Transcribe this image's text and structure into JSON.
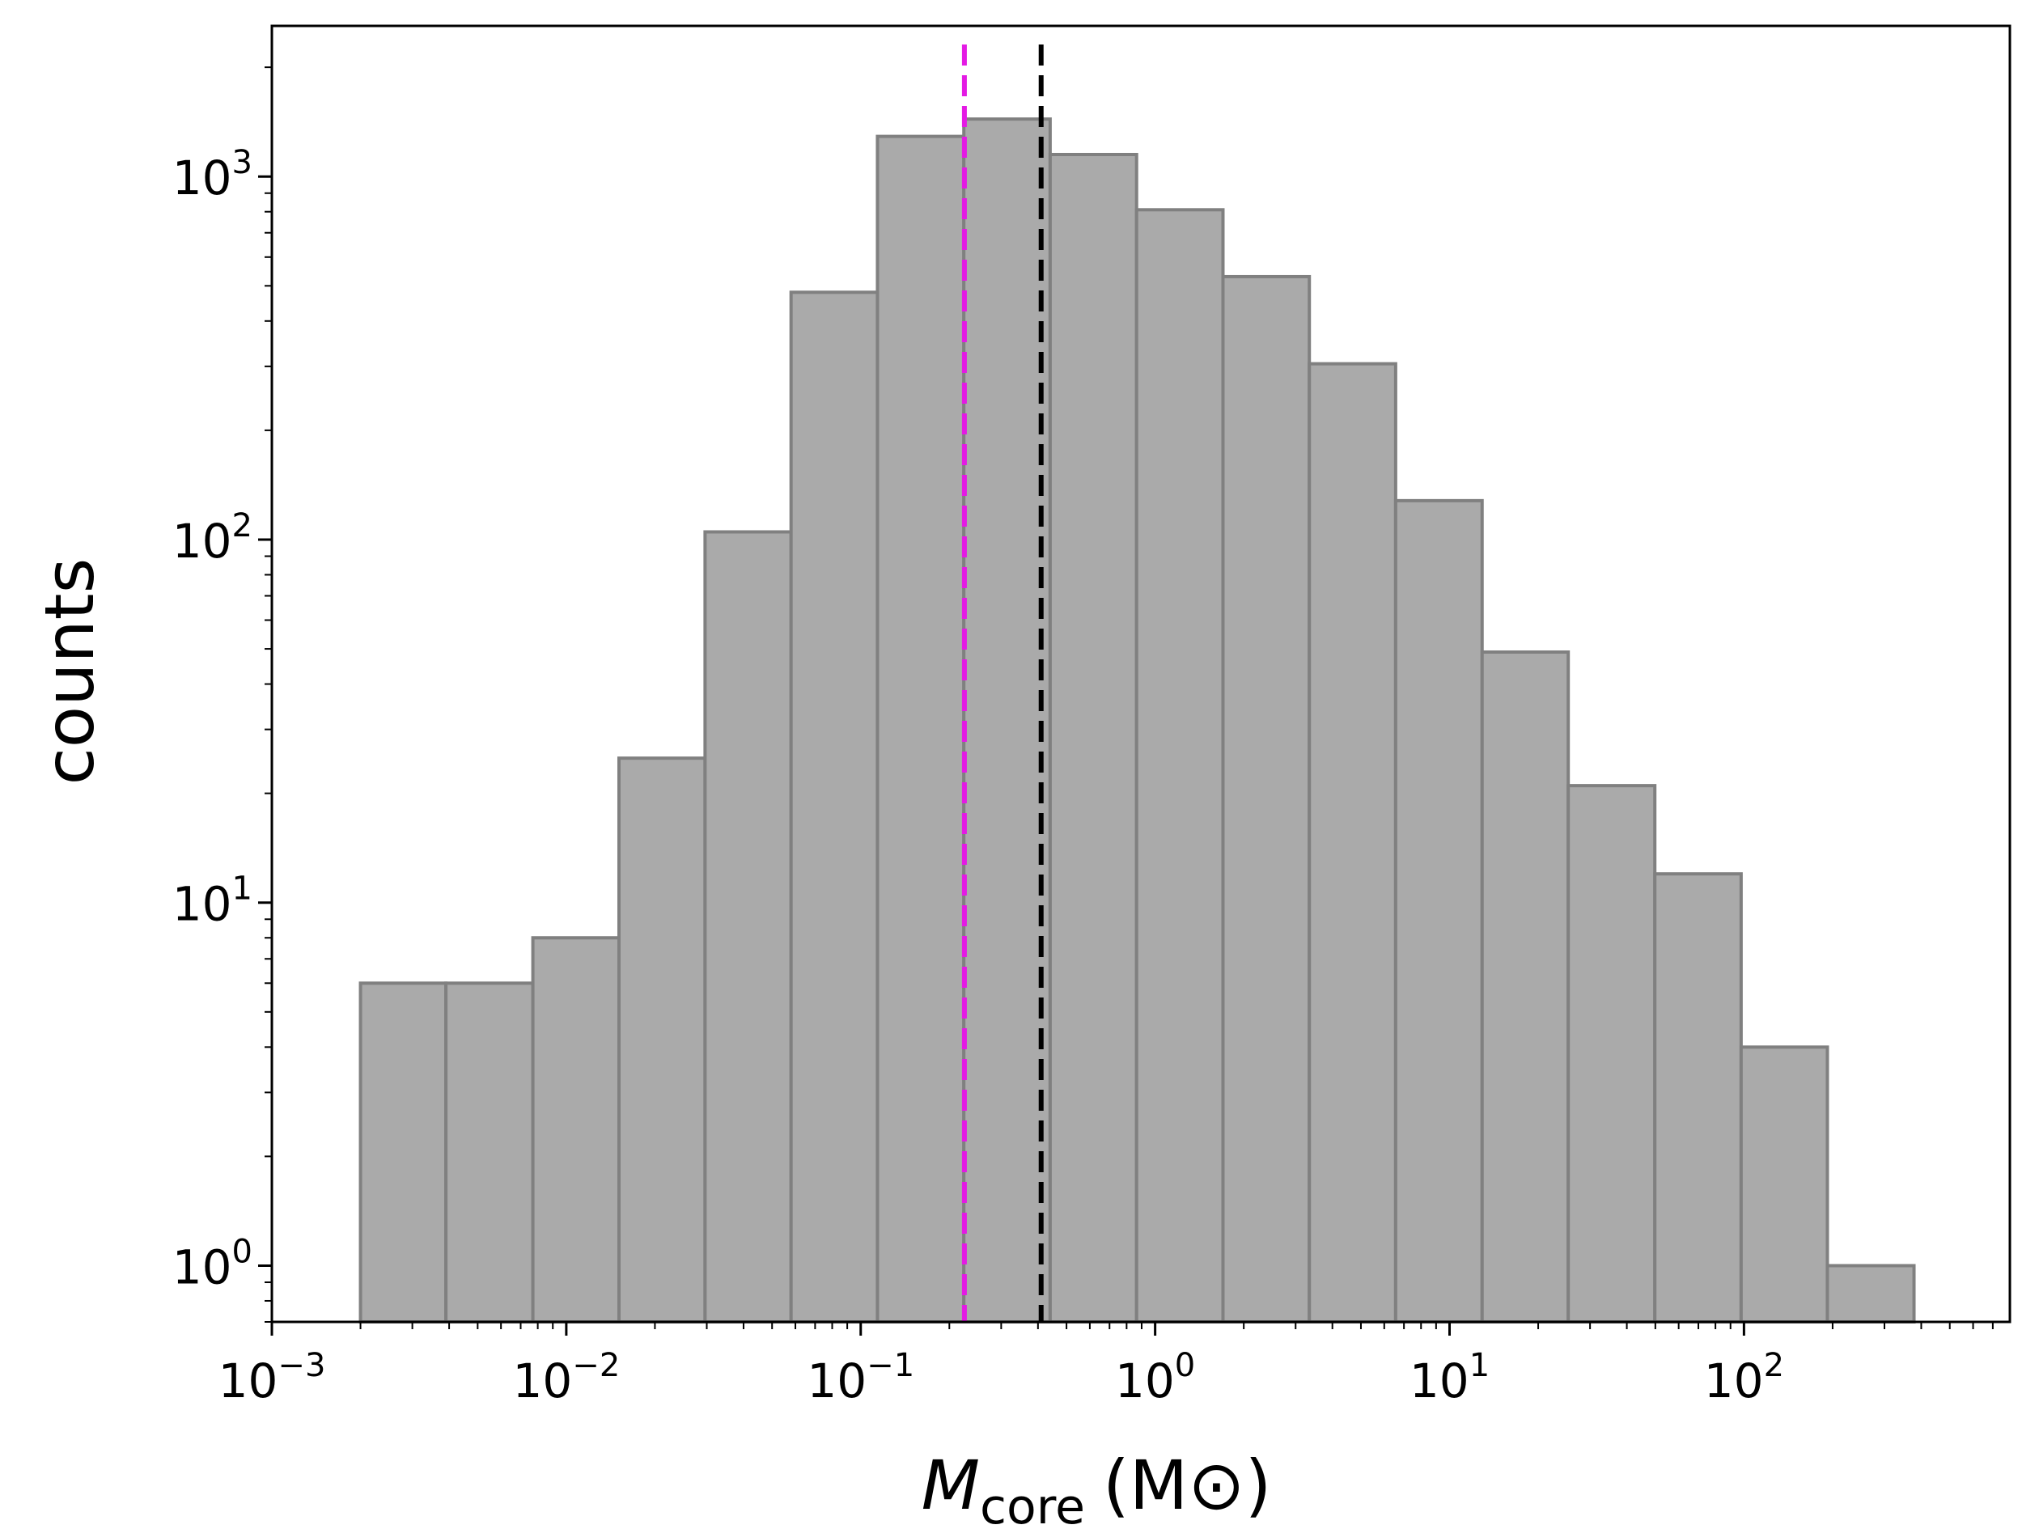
{
  "chart_data": {
    "type": "bar",
    "subtype": "histogram",
    "x_scale": "log",
    "y_scale": "log",
    "xlim": [
      0.001,
      800
    ],
    "ylim": [
      0.7,
      2600
    ],
    "xlabel": {
      "main": "M",
      "sub": "core",
      "units": "(M⊙)"
    },
    "ylabel": "counts",
    "grid": false,
    "bins": [
      {
        "x0": 0.002,
        "x1": 0.0039,
        "count": 6
      },
      {
        "x0": 0.0039,
        "x1": 0.0077,
        "count": 6
      },
      {
        "x0": 0.0077,
        "x1": 0.0151,
        "count": 8
      },
      {
        "x0": 0.0151,
        "x1": 0.0296,
        "count": 25
      },
      {
        "x0": 0.0296,
        "x1": 0.058,
        "count": 105
      },
      {
        "x0": 0.058,
        "x1": 0.114,
        "count": 480
      },
      {
        "x0": 0.114,
        "x1": 0.224,
        "count": 1290
      },
      {
        "x0": 0.224,
        "x1": 0.44,
        "count": 1440
      },
      {
        "x0": 0.44,
        "x1": 0.865,
        "count": 1150
      },
      {
        "x0": 0.865,
        "x1": 1.7,
        "count": 810
      },
      {
        "x0": 1.7,
        "x1": 3.34,
        "count": 530
      },
      {
        "x0": 3.34,
        "x1": 6.56,
        "count": 305
      },
      {
        "x0": 6.56,
        "x1": 12.9,
        "count": 128
      },
      {
        "x0": 12.9,
        "x1": 25.3,
        "count": 49
      },
      {
        "x0": 25.3,
        "x1": 49.8,
        "count": 21
      },
      {
        "x0": 49.8,
        "x1": 97.8,
        "count": 12
      },
      {
        "x0": 97.8,
        "x1": 192,
        "count": 4
      },
      {
        "x0": 192,
        "x1": 378,
        "count": 1
      }
    ],
    "vlines": [
      {
        "x": 0.225,
        "color": "#e41ae4",
        "style": "dashed"
      },
      {
        "x": 0.41,
        "color": "#000000",
        "style": "dashed"
      }
    ],
    "bar_fill": "#aaaaaa",
    "bar_edge": "#808080",
    "x_ticks": [
      {
        "value": 0.001,
        "base": "10",
        "exp": "−3"
      },
      {
        "value": 0.01,
        "base": "10",
        "exp": "−2"
      },
      {
        "value": 0.1,
        "base": "10",
        "exp": "−1"
      },
      {
        "value": 1,
        "base": "10",
        "exp": "0"
      },
      {
        "value": 10,
        "base": "10",
        "exp": "1"
      },
      {
        "value": 100,
        "base": "10",
        "exp": "2"
      }
    ],
    "y_ticks": [
      {
        "value": 1,
        "base": "10",
        "exp": "0"
      },
      {
        "value": 10,
        "base": "10",
        "exp": "1"
      },
      {
        "value": 100,
        "base": "10",
        "exp": "2"
      },
      {
        "value": 1000,
        "base": "10",
        "exp": "3"
      }
    ]
  }
}
